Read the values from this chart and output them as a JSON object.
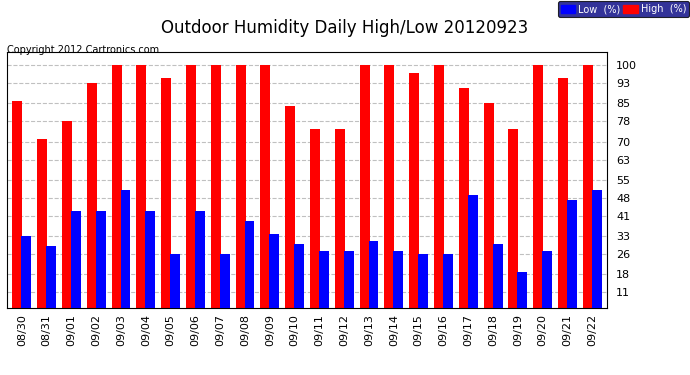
{
  "title": "Outdoor Humidity Daily High/Low 20120923",
  "copyright": "Copyright 2012 Cartronics.com",
  "legend_low": "Low  (%)",
  "legend_high": "High  (%)",
  "categories": [
    "08/30",
    "08/31",
    "09/01",
    "09/02",
    "09/03",
    "09/04",
    "09/05",
    "09/06",
    "09/07",
    "09/08",
    "09/09",
    "09/10",
    "09/11",
    "09/12",
    "09/13",
    "09/14",
    "09/15",
    "09/16",
    "09/17",
    "09/18",
    "09/19",
    "09/20",
    "09/21",
    "09/22"
  ],
  "high_values": [
    86,
    71,
    78,
    93,
    100,
    100,
    95,
    100,
    100,
    100,
    100,
    84,
    75,
    75,
    100,
    100,
    97,
    100,
    91,
    85,
    75,
    100,
    95,
    100
  ],
  "low_values": [
    33,
    29,
    43,
    43,
    51,
    43,
    26,
    43,
    26,
    39,
    34,
    30,
    27,
    27,
    31,
    27,
    26,
    26,
    49,
    30,
    19,
    27,
    47,
    51
  ],
  "background_color": "#ffffff",
  "plot_bg_color": "#ffffff",
  "bar_high_color": "#ff0000",
  "bar_low_color": "#0000ff",
  "grid_color": "#c0c0c0",
  "title_color": "#000000",
  "copyright_color": "#000000",
  "yticks": [
    11,
    18,
    26,
    33,
    41,
    48,
    55,
    63,
    70,
    78,
    85,
    93,
    100
  ],
  "ylim": [
    5,
    105
  ],
  "title_fontsize": 12,
  "tick_fontsize": 8,
  "copyright_fontsize": 7
}
